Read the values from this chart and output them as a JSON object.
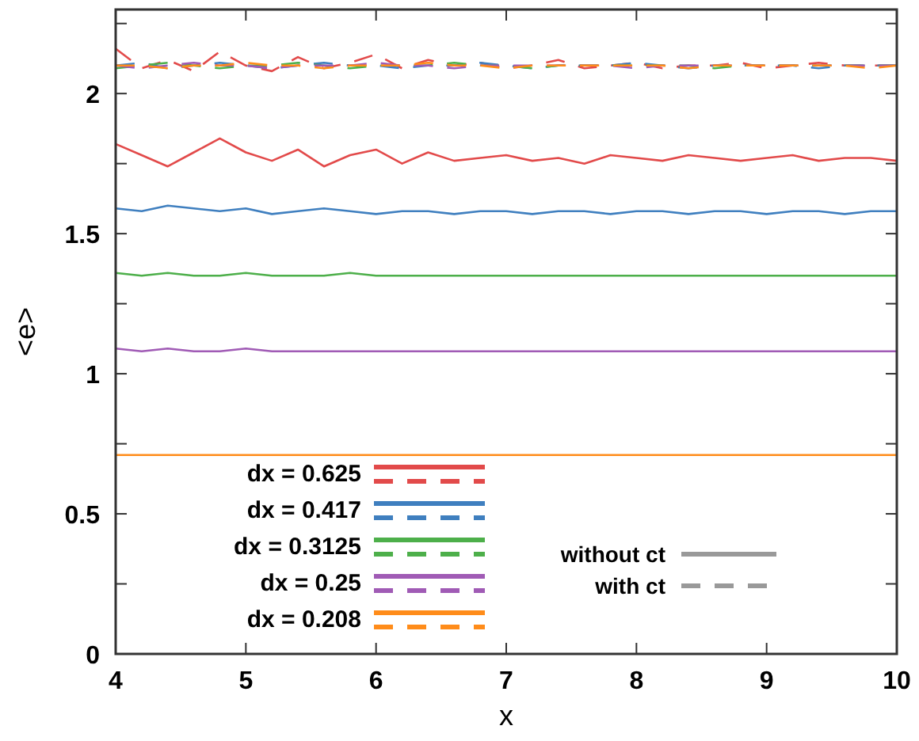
{
  "chart_data": {
    "type": "line",
    "xlabel": "x",
    "ylabel": "<e>",
    "xlim": [
      4,
      10
    ],
    "ylim": [
      0,
      2.3
    ],
    "xticks": [
      4,
      5,
      6,
      7,
      8,
      9,
      10
    ],
    "yticks": [
      0,
      {
        "value": 0.25,
        "label": null
      },
      0.5,
      {
        "value": 0.75,
        "label": null
      },
      1,
      {
        "value": 1.25,
        "label": null
      },
      1.5,
      {
        "value": 1.75,
        "label": null
      },
      2,
      {
        "value": 2.25,
        "label": null
      }
    ],
    "x": [
      4,
      4.2,
      4.4,
      4.6,
      4.8,
      5,
      5.2,
      5.4,
      5.6,
      5.8,
      6,
      6.2,
      6.4,
      6.6,
      6.8,
      7,
      7.2,
      7.4,
      7.6,
      7.8,
      8,
      8.2,
      8.4,
      8.6,
      8.8,
      9,
      9.2,
      9.4,
      9.6,
      9.8,
      10
    ],
    "legend": "bottom left",
    "grid": false,
    "marker": "none",
    "series": [
      {
        "name": "dx = 0.625",
        "color": "#e24a4a",
        "line_style": "solid",
        "values": [
          1.82,
          1.78,
          1.74,
          1.79,
          1.84,
          1.79,
          1.76,
          1.8,
          1.74,
          1.78,
          1.8,
          1.75,
          1.79,
          1.76,
          1.77,
          1.78,
          1.76,
          1.77,
          1.75,
          1.78,
          1.77,
          1.76,
          1.78,
          1.77,
          1.76,
          1.77,
          1.78,
          1.76,
          1.77,
          1.77,
          1.76
        ]
      },
      {
        "color": "#e24a4a",
        "line_style": "dashed",
        "values": [
          2.16,
          2.09,
          2.12,
          2.08,
          2.15,
          2.1,
          2.08,
          2.13,
          2.09,
          2.11,
          2.14,
          2.09,
          2.12,
          2.1,
          2.11,
          2.09,
          2.1,
          2.12,
          2.09,
          2.1,
          2.11,
          2.09,
          2.1,
          2.1,
          2.11,
          2.09,
          2.1,
          2.11,
          2.1,
          2.1,
          2.1
        ]
      },
      {
        "name": "dx = 0.417",
        "color": "#3f7fbf",
        "line_style": "solid",
        "values": [
          1.59,
          1.58,
          1.6,
          1.59,
          1.58,
          1.59,
          1.57,
          1.58,
          1.59,
          1.58,
          1.57,
          1.58,
          1.58,
          1.57,
          1.58,
          1.58,
          1.57,
          1.58,
          1.58,
          1.57,
          1.58,
          1.58,
          1.57,
          1.58,
          1.58,
          1.57,
          1.58,
          1.58,
          1.57,
          1.58,
          1.58
        ]
      },
      {
        "color": "#3f7fbf",
        "line_style": "dashed",
        "values": [
          2.1,
          2.11,
          2.09,
          2.1,
          2.11,
          2.1,
          2.09,
          2.1,
          2.11,
          2.1,
          2.1,
          2.09,
          2.1,
          2.1,
          2.11,
          2.1,
          2.09,
          2.1,
          2.1,
          2.1,
          2.11,
          2.1,
          2.09,
          2.1,
          2.1,
          2.1,
          2.1,
          2.09,
          2.1,
          2.1,
          2.1
        ]
      },
      {
        "name": "dx = 0.3125",
        "color": "#4daf4a",
        "line_style": "solid",
        "values": [
          1.36,
          1.35,
          1.36,
          1.35,
          1.35,
          1.36,
          1.35,
          1.35,
          1.35,
          1.36,
          1.35,
          1.35,
          1.35,
          1.35,
          1.35,
          1.35,
          1.35,
          1.35,
          1.35,
          1.35,
          1.35,
          1.35,
          1.35,
          1.35,
          1.35,
          1.35,
          1.35,
          1.35,
          1.35,
          1.35,
          1.35
        ]
      },
      {
        "color": "#4daf4a",
        "line_style": "dashed",
        "values": [
          2.09,
          2.1,
          2.11,
          2.1,
          2.09,
          2.1,
          2.1,
          2.11,
          2.1,
          2.09,
          2.1,
          2.1,
          2.1,
          2.11,
          2.1,
          2.1,
          2.09,
          2.1,
          2.1,
          2.1,
          2.1,
          2.1,
          2.1,
          2.09,
          2.1,
          2.1,
          2.1,
          2.1,
          2.1,
          2.1,
          2.1
        ]
      },
      {
        "name": "dx = 0.25",
        "color": "#a05bb5",
        "line_style": "solid",
        "values": [
          1.09,
          1.08,
          1.09,
          1.08,
          1.08,
          1.09,
          1.08,
          1.08,
          1.08,
          1.08,
          1.08,
          1.08,
          1.08,
          1.08,
          1.08,
          1.08,
          1.08,
          1.08,
          1.08,
          1.08,
          1.08,
          1.08,
          1.08,
          1.08,
          1.08,
          1.08,
          1.08,
          1.08,
          1.08,
          1.08,
          1.08
        ]
      },
      {
        "color": "#a05bb5",
        "line_style": "dashed",
        "values": [
          2.1,
          2.09,
          2.1,
          2.11,
          2.1,
          2.1,
          2.09,
          2.1,
          2.1,
          2.1,
          2.11,
          2.1,
          2.1,
          2.09,
          2.1,
          2.1,
          2.1,
          2.1,
          2.1,
          2.1,
          2.09,
          2.1,
          2.1,
          2.1,
          2.1,
          2.1,
          2.1,
          2.1,
          2.1,
          2.1,
          2.1
        ]
      },
      {
        "name": "dx = 0.208",
        "color": "#ff8c1a",
        "line_style": "solid",
        "values": [
          0.71,
          0.71,
          0.71,
          0.71,
          0.71,
          0.71,
          0.71,
          0.71,
          0.71,
          0.71,
          0.71,
          0.71,
          0.71,
          0.71,
          0.71,
          0.71,
          0.71,
          0.71,
          0.71,
          0.71,
          0.71,
          0.71,
          0.71,
          0.71,
          0.71,
          0.71,
          0.71,
          0.71,
          0.71,
          0.71,
          0.71
        ]
      },
      {
        "color": "#ff8c1a",
        "line_style": "dashed",
        "values": [
          2.1,
          2.1,
          2.09,
          2.1,
          2.1,
          2.11,
          2.1,
          2.1,
          2.09,
          2.1,
          2.1,
          2.1,
          2.11,
          2.1,
          2.1,
          2.09,
          2.1,
          2.1,
          2.1,
          2.1,
          2.1,
          2.1,
          2.09,
          2.1,
          2.1,
          2.1,
          2.1,
          2.1,
          2.1,
          2.09,
          2.1
        ]
      }
    ],
    "annotations": [
      "without ct",
      "with ct"
    ]
  }
}
